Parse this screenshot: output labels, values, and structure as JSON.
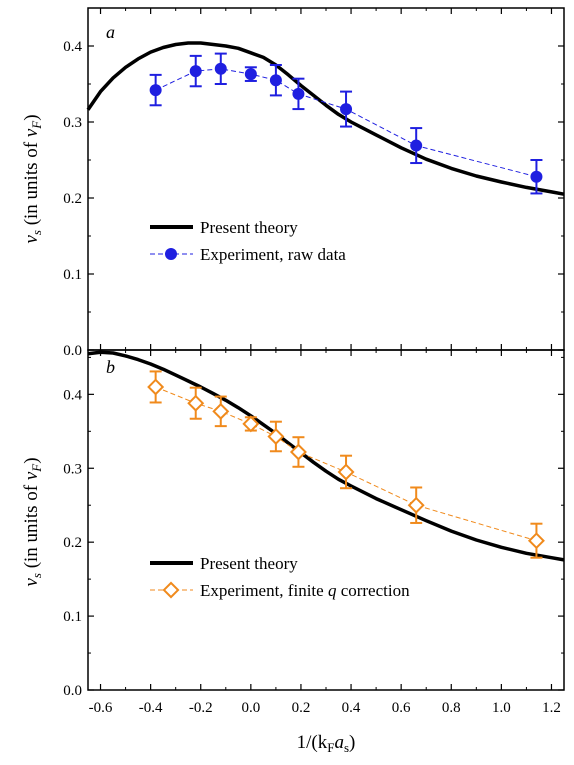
{
  "chart_data": [
    {
      "type": "line",
      "panel_label": "a",
      "xlim": [
        -0.65,
        1.25
      ],
      "ylim": [
        0.0,
        0.45
      ],
      "y_ticks": [
        "0.0",
        "0.1",
        "0.2",
        "0.3",
        "0.4"
      ],
      "y_tick_values": [
        0.0,
        0.1,
        0.2,
        0.3,
        0.4
      ],
      "ylabel_parts": [
        "v",
        "s",
        " (in units of ",
        "v",
        "F",
        ")"
      ],
      "legend_placement": "center-left",
      "series": [
        {
          "name": "Present theory",
          "kind": "curve",
          "color": "#000000",
          "x": [
            -0.65,
            -0.6,
            -0.55,
            -0.5,
            -0.45,
            -0.4,
            -0.35,
            -0.3,
            -0.25,
            -0.2,
            -0.15,
            -0.1,
            -0.05,
            0.0,
            0.05,
            0.1,
            0.15,
            0.2,
            0.25,
            0.3,
            0.35,
            0.4,
            0.5,
            0.6,
            0.7,
            0.8,
            0.9,
            1.0,
            1.1,
            1.2,
            1.25
          ],
          "y": [
            0.316,
            0.34,
            0.358,
            0.372,
            0.383,
            0.392,
            0.398,
            0.402,
            0.404,
            0.404,
            0.402,
            0.4,
            0.397,
            0.391,
            0.385,
            0.375,
            0.362,
            0.348,
            0.335,
            0.322,
            0.31,
            0.3,
            0.283,
            0.266,
            0.251,
            0.239,
            0.229,
            0.221,
            0.214,
            0.208,
            0.205
          ]
        },
        {
          "name": "Experiment, raw data",
          "kind": "points",
          "color": "#1f1fe0",
          "x": [
            -0.38,
            -0.22,
            -0.12,
            0.0,
            0.1,
            0.19,
            0.38,
            0.66,
            1.14
          ],
          "y": [
            0.342,
            0.367,
            0.37,
            0.363,
            0.355,
            0.337,
            0.317,
            0.269,
            0.228
          ],
          "err": [
            0.02,
            0.02,
            0.02,
            0.009,
            0.02,
            0.02,
            0.023,
            0.023,
            0.022
          ]
        }
      ]
    },
    {
      "type": "line",
      "panel_label": "b",
      "xlim": [
        -0.65,
        1.25
      ],
      "ylim": [
        0.0,
        0.46
      ],
      "y_ticks": [
        "0.0",
        "0.1",
        "0.2",
        "0.3",
        "0.4"
      ],
      "y_tick_values": [
        0.0,
        0.1,
        0.2,
        0.3,
        0.4
      ],
      "x_ticks": [
        "-0.6",
        "-0.4",
        "-0.2",
        "0.0",
        "0.2",
        "0.4",
        "0.6",
        "0.8",
        "1.0",
        "1.2"
      ],
      "x_tick_values": [
        -0.6,
        -0.4,
        -0.2,
        0.0,
        0.2,
        0.4,
        0.6,
        0.8,
        1.0,
        1.2
      ],
      "ylabel_parts": [
        "v",
        "s",
        " (in units of ",
        "v",
        "F",
        ")"
      ],
      "xlabel_parts": [
        "1/(k",
        "F",
        "a",
        "s",
        ")"
      ],
      "legend_placement": "bottom-left",
      "series": [
        {
          "name": "Present theory",
          "kind": "curve",
          "color": "#000000",
          "x": [
            -0.65,
            -0.6,
            -0.55,
            -0.5,
            -0.45,
            -0.4,
            -0.35,
            -0.3,
            -0.25,
            -0.2,
            -0.15,
            -0.1,
            -0.05,
            0.0,
            0.05,
            0.1,
            0.15,
            0.2,
            0.25,
            0.3,
            0.35,
            0.4,
            0.5,
            0.6,
            0.7,
            0.8,
            0.9,
            1.0,
            1.1,
            1.2,
            1.25
          ],
          "y": [
            0.455,
            0.457,
            0.456,
            0.452,
            0.447,
            0.441,
            0.434,
            0.426,
            0.418,
            0.41,
            0.401,
            0.392,
            0.382,
            0.371,
            0.359,
            0.347,
            0.334,
            0.321,
            0.308,
            0.296,
            0.285,
            0.276,
            0.259,
            0.244,
            0.229,
            0.215,
            0.203,
            0.193,
            0.185,
            0.179,
            0.176
          ]
        },
        {
          "name_parts": [
            "Experiment, finite ",
            "q",
            " correction"
          ],
          "kind": "points",
          "color": "#f08a1c",
          "x": [
            -0.38,
            -0.22,
            -0.12,
            0.0,
            0.1,
            0.19,
            0.38,
            0.66,
            1.14
          ],
          "y": [
            0.41,
            0.388,
            0.377,
            0.36,
            0.343,
            0.322,
            0.295,
            0.25,
            0.202
          ],
          "err": [
            0.021,
            0.021,
            0.02,
            0.009,
            0.02,
            0.02,
            0.022,
            0.024,
            0.023
          ]
        }
      ]
    }
  ]
}
